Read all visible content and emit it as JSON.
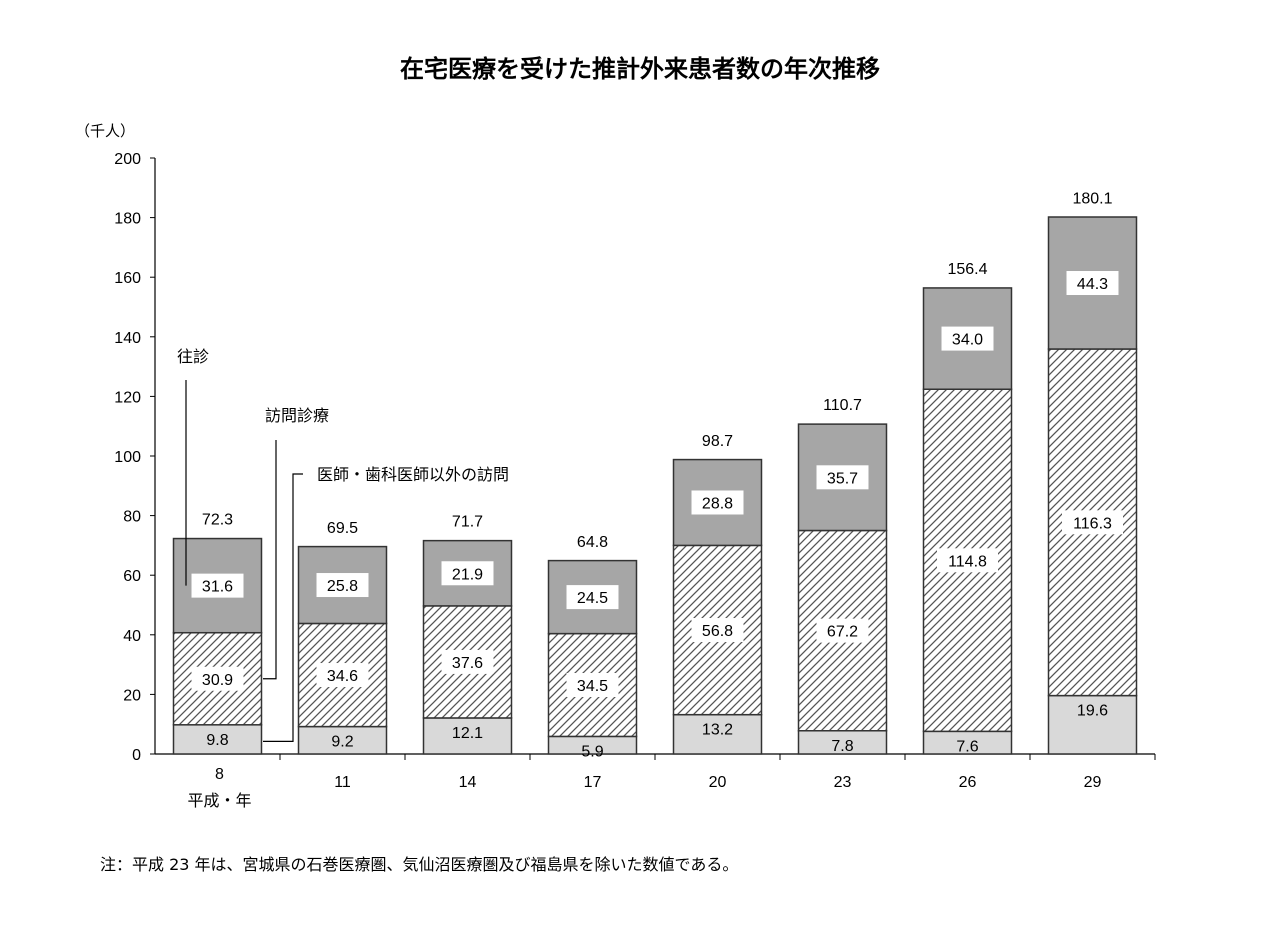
{
  "chart_data": {
    "type": "bar",
    "stacked": true,
    "title": "在宅医療を受けた推計外来患者数の年次推移",
    "unit_label": "（千人）",
    "x_era_label": "平成・年",
    "categories": [
      "8",
      "11",
      "14",
      "17",
      "20",
      "23",
      "26",
      "29"
    ],
    "ylim": [
      0,
      200
    ],
    "yticks": [
      0,
      20,
      40,
      60,
      80,
      100,
      120,
      140,
      160,
      180,
      200
    ],
    "series": [
      {
        "name": "医師・歯科医師以外の訪問",
        "values": [
          9.8,
          9.2,
          12.1,
          5.9,
          13.2,
          7.8,
          7.6,
          19.6
        ],
        "labels": [
          "9.8",
          "9.2",
          "12.1",
          "5.9",
          "13.2",
          "7.8",
          "7.6",
          "19.6"
        ],
        "fill": "light"
      },
      {
        "name": "訪問診療",
        "values": [
          30.9,
          34.6,
          37.6,
          34.5,
          56.8,
          67.2,
          114.8,
          116.3
        ],
        "labels": [
          "30.9",
          "34.6",
          "37.6",
          "34.5",
          "56.8",
          "67.2",
          "114.8",
          "116.3"
        ],
        "fill": "hatch"
      },
      {
        "name": "往診",
        "values": [
          31.6,
          25.8,
          21.9,
          24.5,
          28.8,
          35.7,
          34.0,
          44.3
        ],
        "labels": [
          "31.6",
          "25.8",
          "21.9",
          "24.5",
          "28.8",
          "35.7",
          "34.0",
          "44.3"
        ],
        "fill": "dark"
      }
    ],
    "totals": [
      72.3,
      69.5,
      71.7,
      64.8,
      98.7,
      110.7,
      156.4,
      180.1
    ],
    "total_labels": [
      "72.3",
      "69.5",
      "71.7",
      "64.8",
      "98.7",
      "110.7",
      "156.4",
      "180.1"
    ],
    "grid": false,
    "colors": {
      "light": "#d9d9d9",
      "dark": "#a6a6a6",
      "hatch_bg": "#ffffff",
      "hatch_line": "#555555",
      "outline": "#333333"
    }
  },
  "note": "注：平成 23 年は、宮城県の石巻医療圏、気仙沼医療圏及び福島県を除いた数値である。"
}
